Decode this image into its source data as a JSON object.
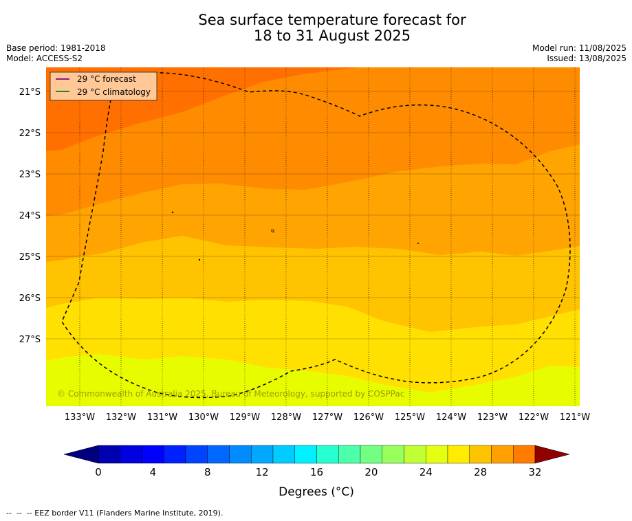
{
  "title_line1": "Sea surface temperature forecast for",
  "title_line2": "18 to 31 August 2025",
  "base_period": "Base period: 1981-2018",
  "model": "Model: ACCESS-S2",
  "model_run": "Model run: 11/08/2025",
  "issued": "Issued: 13/08/2025",
  "legend": [
    {
      "label": "29 °C  forecast",
      "color": "#7f007f"
    },
    {
      "label": "29 °C  climatology",
      "color": "#008000"
    }
  ],
  "lat_labels": [
    "21°S",
    "22°S",
    "23°S",
    "24°S",
    "25°S",
    "26°S",
    "27°S"
  ],
  "lon_labels": [
    "133°W",
    "132°W",
    "131°W",
    "130°W",
    "129°W",
    "128°W",
    "127°W",
    "126°W",
    "125°W",
    "124°W",
    "123°W",
    "122°W",
    "121°W"
  ],
  "copyright": "© Commonwealth of Australia 2025, Bureau of Meteorology, supported by COSPPac",
  "colorbar": {
    "min": 0,
    "max": 32,
    "step": 1.6,
    "tick_labels": [
      "0",
      "4",
      "8",
      "12",
      "16",
      "20",
      "24",
      "28",
      "32"
    ],
    "label": "Degrees (°C)",
    "colors": [
      "#00007f",
      "#0000b0",
      "#0000e0",
      "#0000ff",
      "#0020ff",
      "#0044ff",
      "#0068ff",
      "#008cff",
      "#00a8ff",
      "#00ccff",
      "#00f0ff",
      "#26ffd0",
      "#4cffaa",
      "#73ff83",
      "#99ff5c",
      "#c0ff36",
      "#e5ff12",
      "#ffec00",
      "#ffc400",
      "#ffa000",
      "#ff7c00",
      "#ff5800",
      "#ff3000",
      "#f01000",
      "#c00000",
      "#900000"
    ]
  },
  "sst_band_colors": {
    "27_5": "#ff7000",
    "27": "#ff8c00",
    "26_5": "#ffa400",
    "26": "#ffc300",
    "25_5": "#ffe000",
    "25": "#e8fc00"
  },
  "footer": "--  --  -- EEZ border V11 (Flanders Marine Institute, 2019)."
}
